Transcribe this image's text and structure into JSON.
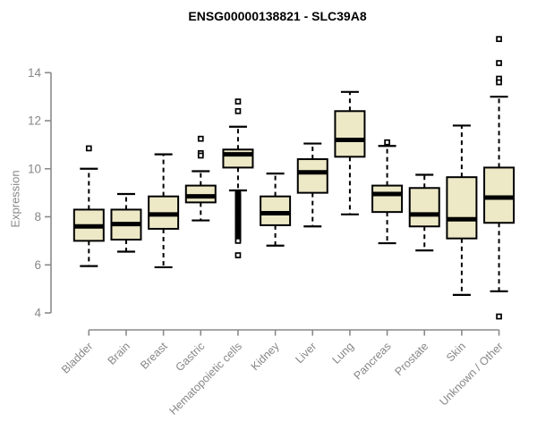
{
  "chart_data": {
    "type": "boxplot",
    "title": "ENSG00000138821 - SLC39A8",
    "xlabel": "",
    "ylabel": "Expression",
    "ylim": [
      3.7,
      15.6
    ],
    "yticks": [
      4,
      6,
      8,
      10,
      12,
      14
    ],
    "grid": false,
    "legend": "none",
    "categories": [
      "Bladder",
      "Brain",
      "Breast",
      "Gastric",
      "Hematopoietic cells",
      "Kidney",
      "Liver",
      "Lung",
      "Pancreas",
      "Prostate",
      "Skin",
      "Unknown / Other"
    ],
    "boxes": [
      {
        "category": "Bladder",
        "whisker_low": 5.95,
        "q1": 7.0,
        "median": 7.6,
        "q3": 8.3,
        "whisker_high": 10.0,
        "outliers": [
          10.85
        ]
      },
      {
        "category": "Brain",
        "whisker_low": 6.55,
        "q1": 7.05,
        "median": 7.7,
        "q3": 8.3,
        "whisker_high": 8.95,
        "outliers": []
      },
      {
        "category": "Breast",
        "whisker_low": 5.9,
        "q1": 7.5,
        "median": 8.1,
        "q3": 8.85,
        "whisker_high": 10.6,
        "outliers": []
      },
      {
        "category": "Gastric",
        "whisker_low": 7.85,
        "q1": 8.6,
        "median": 8.85,
        "q3": 9.3,
        "whisker_high": 9.9,
        "outliers": [
          11.25,
          10.65,
          10.55
        ]
      },
      {
        "category": "Hematopoietic cells",
        "whisker_low": 9.1,
        "q1": 10.05,
        "median": 10.6,
        "q3": 10.8,
        "whisker_high": 11.75,
        "outliers": [
          12.8,
          12.4,
          8.95,
          8.9,
          8.85,
          8.8,
          8.75,
          8.7,
          8.65,
          8.6,
          8.55,
          8.5,
          8.45,
          8.4,
          8.35,
          8.3,
          8.25,
          8.2,
          8.15,
          8.1,
          8.05,
          8.0,
          7.95,
          7.9,
          7.85,
          7.8,
          7.75,
          7.7,
          7.65,
          7.6,
          7.55,
          7.5,
          7.45,
          7.4,
          7.35,
          7.3,
          7.25,
          7.2,
          7.15,
          7.1,
          7.05,
          7.0,
          6.4
        ]
      },
      {
        "category": "Kidney",
        "whisker_low": 6.8,
        "q1": 7.65,
        "median": 8.15,
        "q3": 8.85,
        "whisker_high": 9.8,
        "outliers": []
      },
      {
        "category": "Liver",
        "whisker_low": 7.6,
        "q1": 9.0,
        "median": 9.85,
        "q3": 10.4,
        "whisker_high": 11.05,
        "outliers": []
      },
      {
        "category": "Lung",
        "whisker_low": 8.1,
        "q1": 10.5,
        "median": 11.2,
        "q3": 12.4,
        "whisker_high": 13.2,
        "outliers": []
      },
      {
        "category": "Pancreas",
        "whisker_low": 6.9,
        "q1": 8.2,
        "median": 8.95,
        "q3": 9.3,
        "whisker_high": 10.95,
        "outliers": [
          11.1
        ]
      },
      {
        "category": "Prostate",
        "whisker_low": 6.6,
        "q1": 7.6,
        "median": 8.1,
        "q3": 9.2,
        "whisker_high": 9.75,
        "outliers": []
      },
      {
        "category": "Skin",
        "whisker_low": 4.75,
        "q1": 7.1,
        "median": 7.9,
        "q3": 9.65,
        "whisker_high": 11.8,
        "outliers": []
      },
      {
        "category": "Unknown / Other",
        "whisker_low": 4.9,
        "q1": 7.75,
        "median": 8.8,
        "q3": 10.05,
        "whisker_high": 13.0,
        "outliers": [
          15.4,
          14.4,
          13.75,
          13.6,
          3.85
        ]
      }
    ],
    "colors": {
      "box_fill": "#EDE8C6",
      "box_border": "#000000",
      "median": "#000000",
      "whisker": "#000000",
      "axis": "#8a8a8a",
      "tick_text": "#878787",
      "title_text": "#000000",
      "background": "#ffffff"
    }
  }
}
